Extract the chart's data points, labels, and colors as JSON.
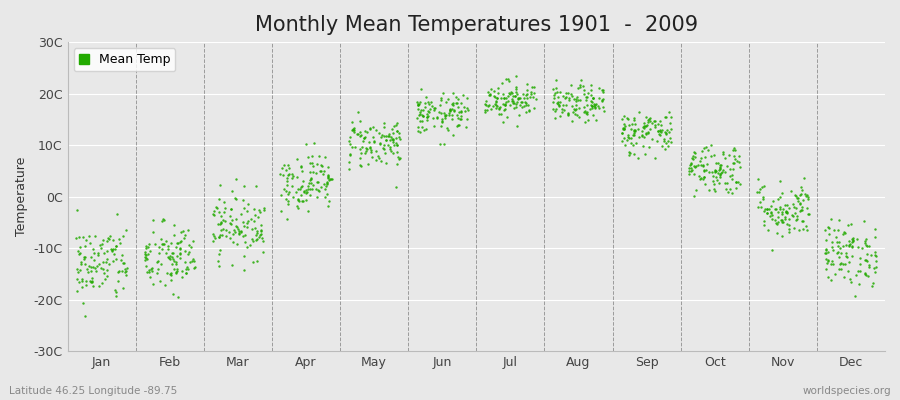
{
  "title": "Monthly Mean Temperatures 1901  -  2009",
  "ylabel": "Temperature",
  "xlabel_bottom_left": "Latitude 46.25 Longitude -89.75",
  "xlabel_bottom_right": "worldspecies.org",
  "ylim": [
    -30,
    30
  ],
  "yticks": [
    -30,
    -20,
    -10,
    0,
    10,
    20,
    30
  ],
  "ytick_labels": [
    "-30C",
    "-20C",
    "-10C",
    "0C",
    "10C",
    "20C",
    "30C"
  ],
  "months": [
    "Jan",
    "Feb",
    "Mar",
    "Apr",
    "May",
    "Jun",
    "Jul",
    "Aug",
    "Sep",
    "Oct",
    "Nov",
    "Dec"
  ],
  "dot_color": "#22aa00",
  "background_color": "#e8e8e8",
  "plot_bg_color": "#e8e8e8",
  "mean_temps": [
    -13.0,
    -12.0,
    -5.5,
    3.0,
    10.5,
    16.0,
    19.0,
    18.0,
    12.5,
    5.5,
    -2.5,
    -11.0
  ],
  "temp_std": [
    3.8,
    3.5,
    3.2,
    2.8,
    2.5,
    2.0,
    1.8,
    1.8,
    2.2,
    2.5,
    2.8,
    3.2
  ],
  "n_years": 109,
  "seed": 42,
  "title_fontsize": 15,
  "label_fontsize": 9,
  "legend_fontsize": 9,
  "dot_size": 3,
  "dot_marker": "o"
}
